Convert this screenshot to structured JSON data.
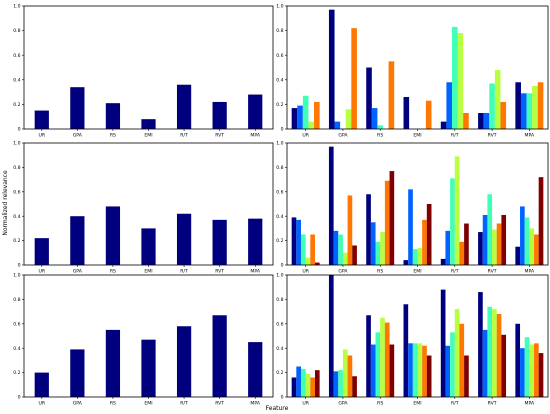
{
  "figure": {
    "ylabel": "Normalized relevance",
    "xlabel": "Feature"
  },
  "chart_data": [
    {
      "type": "bar",
      "row": 1,
      "col": 1,
      "categories": [
        "UR",
        "GPA",
        "RS",
        "EMI",
        "R/T",
        "RVT",
        "MPA"
      ],
      "ylim": [
        0,
        1.0
      ],
      "yticks": [
        "0",
        "0.2",
        "0.4",
        "0.6",
        "0.8",
        "1.0"
      ],
      "series": [
        {
          "color": "#00007f",
          "values": [
            0.15,
            0.34,
            0.21,
            0.08,
            0.36,
            0.22,
            0.28
          ]
        }
      ]
    },
    {
      "type": "bar",
      "row": 1,
      "col": 2,
      "categories": [
        "UR",
        "GPA",
        "RS",
        "EMI",
        "R/T",
        "RVT",
        "MPA"
      ],
      "ylim": [
        0,
        1.0
      ],
      "yticks": [
        "0",
        "0.2",
        "0.4",
        "0.6",
        "0.8",
        "1.0"
      ],
      "series": [
        {
          "color": "#00007f",
          "values": [
            0.17,
            0.97,
            0.5,
            0.26,
            0.06,
            0.13,
            0.38
          ]
        },
        {
          "color": "#0062ff",
          "values": [
            0.19,
            0.06,
            0.17,
            0.0,
            0.38,
            0.13,
            0.29
          ]
        },
        {
          "color": "#40ffb7",
          "values": [
            0.27,
            0.0,
            0.03,
            0.0,
            0.83,
            0.37,
            0.29
          ]
        },
        {
          "color": "#b7ff40",
          "values": [
            0.06,
            0.16,
            0.0,
            0.0,
            0.78,
            0.48,
            0.35
          ]
        },
        {
          "color": "#ff7600",
          "values": [
            0.22,
            0.82,
            0.55,
            0.23,
            0.13,
            0.22,
            0.38
          ]
        }
      ]
    },
    {
      "type": "bar",
      "row": 2,
      "col": 1,
      "categories": [
        "UR",
        "GPA",
        "RS",
        "EMI",
        "R/T",
        "RVT",
        "MPA"
      ],
      "ylim": [
        0,
        1.0
      ],
      "yticks": [
        "0",
        "0.2",
        "0.4",
        "0.6",
        "0.8",
        "1.0"
      ],
      "series": [
        {
          "color": "#00007f",
          "values": [
            0.22,
            0.4,
            0.48,
            0.3,
            0.42,
            0.37,
            0.38
          ]
        }
      ]
    },
    {
      "type": "bar",
      "row": 2,
      "col": 2,
      "categories": [
        "UR",
        "GPA",
        "RS",
        "EMI",
        "R/T",
        "RVT",
        "MPA"
      ],
      "ylim": [
        0,
        1.0
      ],
      "yticks": [
        "0",
        "0.2",
        "0.4",
        "0.6",
        "0.8",
        "1.0"
      ],
      "series": [
        {
          "color": "#00007f",
          "values": [
            0.39,
            0.97,
            0.58,
            0.04,
            0.05,
            0.27,
            0.15
          ]
        },
        {
          "color": "#0062ff",
          "values": [
            0.37,
            0.28,
            0.35,
            0.62,
            0.28,
            0.41,
            0.48
          ]
        },
        {
          "color": "#40ffb7",
          "values": [
            0.25,
            0.25,
            0.19,
            0.13,
            0.71,
            0.58,
            0.39
          ]
        },
        {
          "color": "#b7ff40",
          "values": [
            0.06,
            0.1,
            0.27,
            0.14,
            0.89,
            0.29,
            0.3
          ]
        },
        {
          "color": "#ff7600",
          "values": [
            0.25,
            0.57,
            0.69,
            0.37,
            0.19,
            0.34,
            0.25
          ]
        },
        {
          "color": "#7f0000",
          "values": [
            0.02,
            0.16,
            0.77,
            0.5,
            0.34,
            0.41,
            0.72
          ]
        }
      ]
    },
    {
      "type": "bar",
      "row": 3,
      "col": 1,
      "categories": [
        "UR",
        "GPA",
        "RS",
        "EMI",
        "R/T",
        "RVT",
        "MPA"
      ],
      "ylim": [
        0,
        1.0
      ],
      "yticks": [
        "0",
        "0.2",
        "0.4",
        "0.6",
        "0.8",
        "1.0"
      ],
      "series": [
        {
          "color": "#00007f",
          "values": [
            0.2,
            0.39,
            0.55,
            0.47,
            0.58,
            0.67,
            0.45
          ]
        }
      ]
    },
    {
      "type": "bar",
      "row": 3,
      "col": 2,
      "categories": [
        "UR",
        "GPA",
        "RS",
        "EMI",
        "R/T",
        "RVT",
        "MPA"
      ],
      "ylim": [
        0,
        1.0
      ],
      "yticks": [
        "0",
        "0.2",
        "0.4",
        "0.6",
        "0.8",
        "1.0"
      ],
      "series": [
        {
          "color": "#00007f",
          "values": [
            0.16,
            1.0,
            0.67,
            0.76,
            0.88,
            0.86,
            0.6
          ]
        },
        {
          "color": "#0062ff",
          "values": [
            0.25,
            0.21,
            0.43,
            0.44,
            0.42,
            0.55,
            0.4
          ]
        },
        {
          "color": "#40ffb7",
          "values": [
            0.23,
            0.22,
            0.53,
            0.44,
            0.53,
            0.74,
            0.49
          ]
        },
        {
          "color": "#b7ff40",
          "values": [
            0.19,
            0.39,
            0.65,
            0.44,
            0.72,
            0.72,
            0.43
          ]
        },
        {
          "color": "#ff7600",
          "values": [
            0.16,
            0.34,
            0.61,
            0.42,
            0.6,
            0.68,
            0.44
          ]
        },
        {
          "color": "#7f0000",
          "values": [
            0.22,
            0.17,
            0.43,
            0.34,
            0.34,
            0.51,
            0.36
          ]
        }
      ]
    }
  ]
}
